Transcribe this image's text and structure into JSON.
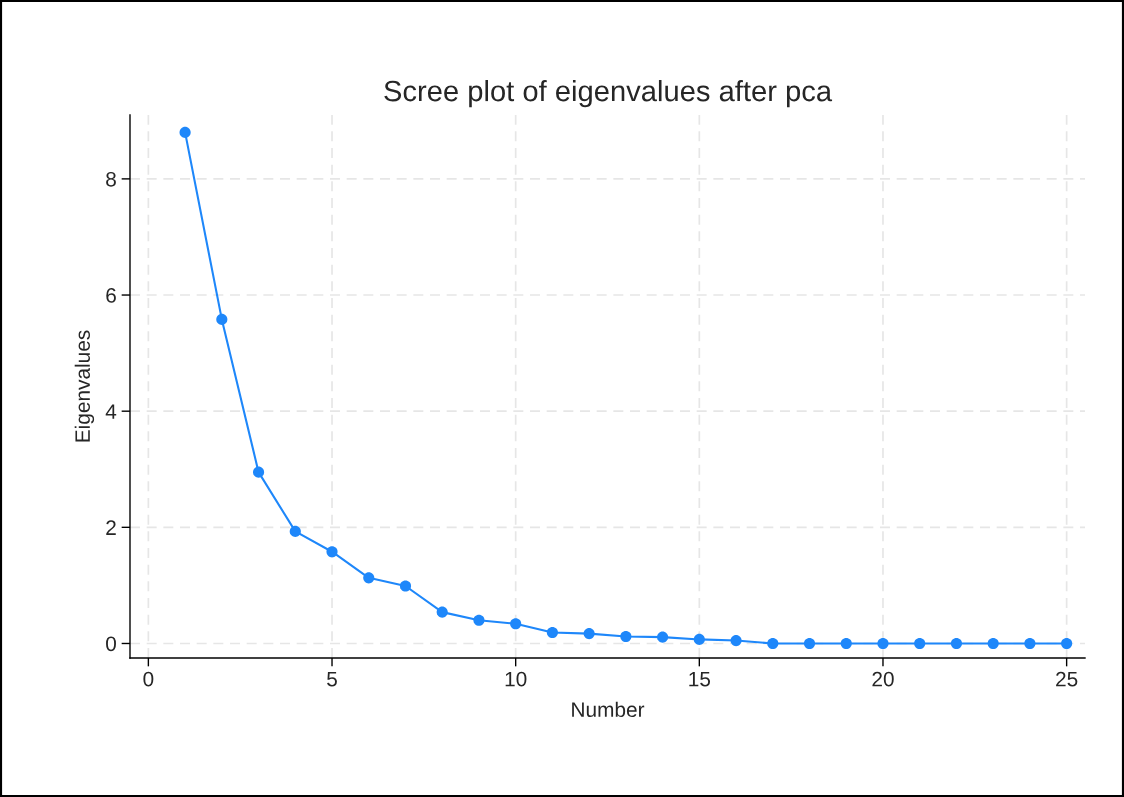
{
  "chart_data": {
    "type": "line",
    "title": "Scree plot of eigenvalues after pca",
    "xlabel": "Number",
    "ylabel": "Eigenvalues",
    "x": [
      1,
      2,
      3,
      4,
      5,
      6,
      7,
      8,
      9,
      10,
      11,
      12,
      13,
      14,
      15,
      16,
      17,
      18,
      19,
      20,
      21,
      22,
      23,
      24,
      25
    ],
    "series": [
      {
        "color": "#1e87fa",
        "values": [
          8.8,
          5.58,
          2.95,
          1.93,
          1.58,
          1.13,
          0.99,
          0.54,
          0.4,
          0.34,
          0.19,
          0.17,
          0.12,
          0.11,
          0.07,
          0.05,
          0,
          0,
          0,
          0,
          0,
          0,
          0,
          0,
          0
        ]
      }
    ],
    "xlim": [
      -0.5,
      25.5
    ],
    "xticks": [
      0,
      5,
      10,
      15,
      20,
      25
    ],
    "ylim": [
      -0.25,
      9.1
    ],
    "yticks": [
      0,
      2,
      4,
      6,
      8
    ],
    "grid": true,
    "marker": "circle",
    "line_style": "solid"
  }
}
